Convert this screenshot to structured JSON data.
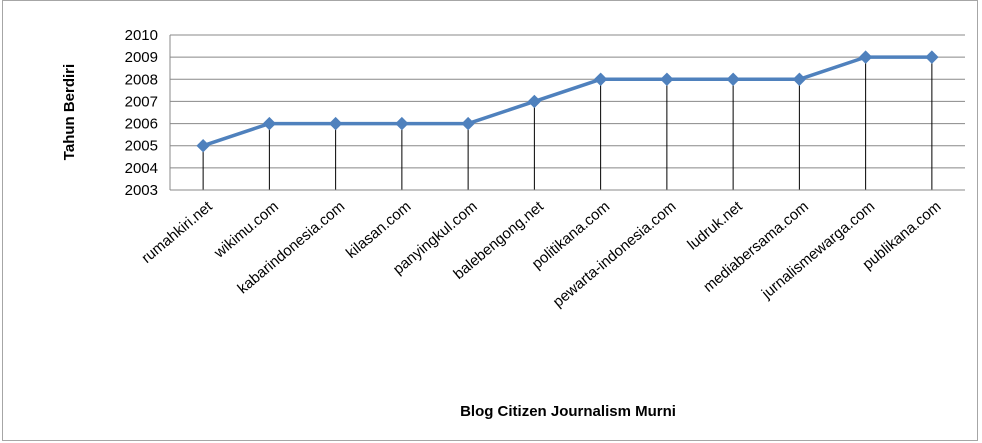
{
  "chart_data": {
    "type": "line",
    "title": "",
    "xlabel": "Blog Citizen Journalism Murni",
    "ylabel": "Tahun Berdiri",
    "categories": [
      "rumahkiri.net",
      "wikimu.com",
      "kabarindonesia.com",
      "kilasan.com",
      "panyingkul.com",
      "balebengong.net",
      "politikana.com",
      "pewarta-indonesia.com",
      "ludruk.net",
      "mediabersama.com",
      "jurnalismewarga.com",
      "publikana.com"
    ],
    "series": [
      {
        "values": [
          2005,
          2006,
          2006,
          2006,
          2006,
          2007,
          2008,
          2008,
          2008,
          2008,
          2009,
          2009
        ]
      }
    ],
    "y_ticks": [
      2003,
      2004,
      2005,
      2006,
      2007,
      2008,
      2009,
      2010
    ],
    "ylim": [
      2003,
      2010
    ],
    "grid": true,
    "legend": "none",
    "colors": {
      "line": "#4f81bd",
      "grid": "#888888",
      "drop_line": "#000000"
    }
  }
}
